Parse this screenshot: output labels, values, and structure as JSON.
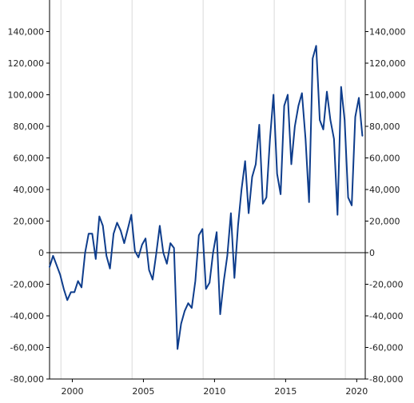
{
  "chart_data": {
    "type": "line",
    "title": "",
    "xlabel": "",
    "ylabel": "",
    "xlim": [
      1998.4,
      2020.6
    ],
    "ylim": [
      -80000,
      160000
    ],
    "y_ticks": [
      -80000,
      -60000,
      -40000,
      -20000,
      0,
      20000,
      40000,
      60000,
      80000,
      100000,
      120000,
      140000
    ],
    "y_tick_labels": [
      "-80,000",
      "-60,000",
      "-40,000",
      "-20,000",
      "0",
      "20,000",
      "40,000",
      "60,000",
      "80,000",
      "100,000",
      "120,000",
      "140,000"
    ],
    "x_ticks": [
      2000,
      2005,
      2010,
      2015,
      2020
    ],
    "x_tick_labels": [
      "2000",
      "2005",
      "2010",
      "2015",
      "2020"
    ],
    "x_gridlines": [
      1999.2,
      2004.2,
      2009.2,
      2014.2,
      2019.2
    ],
    "y_axis_both_sides": true,
    "zero_line": true,
    "grid": "vertical",
    "colors": {
      "line": "#0e3d8c",
      "grid": "#d9d9d9",
      "axis": "#000000"
    },
    "series": [
      {
        "points": [
          [
            1998.4,
            -9000
          ],
          [
            1998.65,
            -2000
          ],
          [
            1998.9,
            -8000
          ],
          [
            1999.15,
            -14000
          ],
          [
            1999.4,
            -23000
          ],
          [
            1999.65,
            -30000
          ],
          [
            1999.9,
            -25000
          ],
          [
            2000.15,
            -25000
          ],
          [
            2000.4,
            -18000
          ],
          [
            2000.65,
            -22000
          ],
          [
            2000.9,
            0
          ],
          [
            2001.15,
            12000
          ],
          [
            2001.4,
            12000
          ],
          [
            2001.65,
            -4000
          ],
          [
            2001.9,
            23000
          ],
          [
            2002.15,
            17000
          ],
          [
            2002.4,
            -2000
          ],
          [
            2002.65,
            -10000
          ],
          [
            2002.9,
            12000
          ],
          [
            2003.15,
            19000
          ],
          [
            2003.4,
            14000
          ],
          [
            2003.65,
            6000
          ],
          [
            2003.9,
            15000
          ],
          [
            2004.15,
            24000
          ],
          [
            2004.4,
            1000
          ],
          [
            2004.65,
            -3000
          ],
          [
            2004.9,
            5000
          ],
          [
            2005.15,
            9000
          ],
          [
            2005.4,
            -11000
          ],
          [
            2005.65,
            -17000
          ],
          [
            2005.9,
            -1000
          ],
          [
            2006.15,
            17000
          ],
          [
            2006.4,
            0
          ],
          [
            2006.65,
            -7000
          ],
          [
            2006.9,
            6000
          ],
          [
            2007.15,
            3000
          ],
          [
            2007.4,
            -61000
          ],
          [
            2007.65,
            -45000
          ],
          [
            2007.9,
            -37000
          ],
          [
            2008.15,
            -32000
          ],
          [
            2008.4,
            -35000
          ],
          [
            2008.65,
            -18000
          ],
          [
            2008.9,
            11000
          ],
          [
            2009.15,
            15000
          ],
          [
            2009.4,
            -23000
          ],
          [
            2009.65,
            -19000
          ],
          [
            2009.9,
            0
          ],
          [
            2010.15,
            13000
          ],
          [
            2010.4,
            -39000
          ],
          [
            2010.65,
            -18000
          ],
          [
            2010.9,
            -2000
          ],
          [
            2011.15,
            25000
          ],
          [
            2011.4,
            -16000
          ],
          [
            2011.65,
            17000
          ],
          [
            2011.9,
            40000
          ],
          [
            2012.15,
            58000
          ],
          [
            2012.4,
            25000
          ],
          [
            2012.65,
            48000
          ],
          [
            2012.9,
            56000
          ],
          [
            2013.15,
            81000
          ],
          [
            2013.4,
            31000
          ],
          [
            2013.65,
            35000
          ],
          [
            2013.9,
            72000
          ],
          [
            2014.15,
            100000
          ],
          [
            2014.4,
            50000
          ],
          [
            2014.65,
            37000
          ],
          [
            2014.9,
            93000
          ],
          [
            2015.15,
            100000
          ],
          [
            2015.4,
            56000
          ],
          [
            2015.65,
            80000
          ],
          [
            2015.9,
            93000
          ],
          [
            2016.15,
            101000
          ],
          [
            2016.4,
            72000
          ],
          [
            2016.65,
            32000
          ],
          [
            2016.9,
            123000
          ],
          [
            2017.15,
            131000
          ],
          [
            2017.4,
            84000
          ],
          [
            2017.65,
            78000
          ],
          [
            2017.9,
            102000
          ],
          [
            2018.15,
            84000
          ],
          [
            2018.4,
            72000
          ],
          [
            2018.65,
            24000
          ],
          [
            2018.9,
            105000
          ],
          [
            2019.15,
            84000
          ],
          [
            2019.4,
            35000
          ],
          [
            2019.65,
            30000
          ],
          [
            2019.9,
            86000
          ],
          [
            2020.15,
            98000
          ],
          [
            2020.4,
            74000
          ]
        ]
      }
    ]
  }
}
